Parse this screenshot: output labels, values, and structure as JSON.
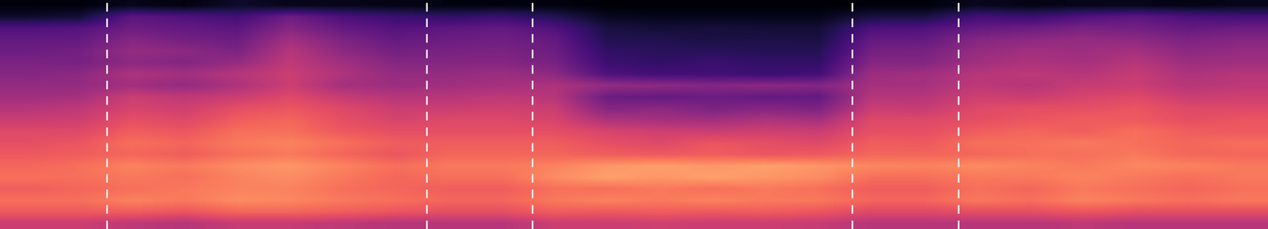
{
  "chart_data": {
    "type": "heatmap",
    "xlim": [
      0,
      24
    ],
    "ylim": [
      0,
      20
    ],
    "clim": [
      0,
      1
    ],
    "tick_labels": false,
    "boundaries": [
      2.02,
      8.07,
      10.07,
      16.13,
      18.14
    ],
    "cells": [
      [
        0.02,
        0.02,
        0.05,
        0.03,
        0.08,
        0.05,
        0.05,
        0.04,
        0.03,
        0.03,
        0.03,
        0.01,
        0.01,
        0.01,
        0.01,
        0.01,
        0.02,
        0.02,
        0.06,
        0.04,
        0.05,
        0.05,
        0.04,
        0.05
      ],
      [
        0.08,
        0.1,
        0.28,
        0.25,
        0.22,
        0.32,
        0.24,
        0.2,
        0.18,
        0.2,
        0.15,
        0.06,
        0.05,
        0.05,
        0.05,
        0.05,
        0.12,
        0.12,
        0.22,
        0.2,
        0.25,
        0.28,
        0.24,
        0.22
      ],
      [
        0.25,
        0.26,
        0.32,
        0.3,
        0.28,
        0.38,
        0.3,
        0.26,
        0.28,
        0.3,
        0.25,
        0.12,
        0.1,
        0.11,
        0.1,
        0.1,
        0.24,
        0.25,
        0.3,
        0.32,
        0.35,
        0.34,
        0.3,
        0.32
      ],
      [
        0.3,
        0.3,
        0.38,
        0.34,
        0.32,
        0.45,
        0.36,
        0.3,
        0.32,
        0.33,
        0.3,
        0.14,
        0.14,
        0.12,
        0.13,
        0.12,
        0.3,
        0.3,
        0.38,
        0.4,
        0.42,
        0.4,
        0.36,
        0.38
      ],
      [
        0.32,
        0.34,
        0.42,
        0.4,
        0.36,
        0.5,
        0.4,
        0.34,
        0.35,
        0.36,
        0.32,
        0.18,
        0.16,
        0.16,
        0.15,
        0.15,
        0.34,
        0.35,
        0.42,
        0.45,
        0.44,
        0.46,
        0.4,
        0.42
      ],
      [
        0.36,
        0.35,
        0.4,
        0.38,
        0.42,
        0.52,
        0.45,
        0.38,
        0.38,
        0.38,
        0.35,
        0.2,
        0.18,
        0.2,
        0.18,
        0.18,
        0.38,
        0.38,
        0.45,
        0.48,
        0.46,
        0.5,
        0.44,
        0.45
      ],
      [
        0.38,
        0.4,
        0.48,
        0.45,
        0.5,
        0.55,
        0.48,
        0.42,
        0.42,
        0.44,
        0.4,
        0.25,
        0.22,
        0.22,
        0.2,
        0.22,
        0.44,
        0.45,
        0.5,
        0.52,
        0.5,
        0.54,
        0.48,
        0.5
      ],
      [
        0.42,
        0.42,
        0.45,
        0.42,
        0.48,
        0.55,
        0.46,
        0.44,
        0.45,
        0.46,
        0.48,
        0.42,
        0.4,
        0.38,
        0.4,
        0.38,
        0.46,
        0.46,
        0.52,
        0.5,
        0.54,
        0.55,
        0.5,
        0.52
      ],
      [
        0.45,
        0.46,
        0.55,
        0.52,
        0.55,
        0.6,
        0.54,
        0.5,
        0.5,
        0.52,
        0.5,
        0.32,
        0.3,
        0.32,
        0.3,
        0.3,
        0.5,
        0.5,
        0.56,
        0.55,
        0.58,
        0.6,
        0.55,
        0.56
      ],
      [
        0.5,
        0.52,
        0.58,
        0.56,
        0.62,
        0.64,
        0.6,
        0.55,
        0.55,
        0.56,
        0.55,
        0.38,
        0.4,
        0.36,
        0.38,
        0.36,
        0.55,
        0.54,
        0.6,
        0.62,
        0.62,
        0.64,
        0.6,
        0.6
      ],
      [
        0.55,
        0.56,
        0.62,
        0.6,
        0.66,
        0.68,
        0.62,
        0.58,
        0.6,
        0.6,
        0.58,
        0.48,
        0.46,
        0.45,
        0.48,
        0.46,
        0.6,
        0.6,
        0.62,
        0.64,
        0.66,
        0.65,
        0.62,
        0.64
      ],
      [
        0.6,
        0.6,
        0.66,
        0.64,
        0.7,
        0.7,
        0.65,
        0.62,
        0.62,
        0.62,
        0.62,
        0.58,
        0.56,
        0.55,
        0.56,
        0.55,
        0.62,
        0.62,
        0.66,
        0.68,
        0.66,
        0.7,
        0.66,
        0.65
      ],
      [
        0.62,
        0.64,
        0.7,
        0.68,
        0.72,
        0.74,
        0.7,
        0.66,
        0.66,
        0.66,
        0.66,
        0.62,
        0.6,
        0.64,
        0.62,
        0.6,
        0.66,
        0.65,
        0.7,
        0.7,
        0.72,
        0.7,
        0.68,
        0.7
      ],
      [
        0.65,
        0.66,
        0.68,
        0.66,
        0.7,
        0.72,
        0.68,
        0.64,
        0.68,
        0.68,
        0.68,
        0.66,
        0.65,
        0.66,
        0.64,
        0.65,
        0.68,
        0.68,
        0.68,
        0.7,
        0.7,
        0.72,
        0.68,
        0.68
      ],
      [
        0.68,
        0.7,
        0.74,
        0.72,
        0.76,
        0.78,
        0.74,
        0.7,
        0.72,
        0.72,
        0.74,
        0.78,
        0.8,
        0.78,
        0.8,
        0.78,
        0.75,
        0.74,
        0.76,
        0.74,
        0.72,
        0.75,
        0.74,
        0.72
      ],
      [
        0.7,
        0.7,
        0.72,
        0.7,
        0.74,
        0.76,
        0.72,
        0.68,
        0.7,
        0.7,
        0.76,
        0.8,
        0.78,
        0.8,
        0.78,
        0.76,
        0.7,
        0.7,
        0.72,
        0.72,
        0.74,
        0.72,
        0.7,
        0.72
      ],
      [
        0.66,
        0.68,
        0.7,
        0.72,
        0.74,
        0.74,
        0.7,
        0.68,
        0.66,
        0.66,
        0.7,
        0.7,
        0.72,
        0.7,
        0.72,
        0.7,
        0.66,
        0.66,
        0.7,
        0.68,
        0.72,
        0.7,
        0.68,
        0.7
      ],
      [
        0.7,
        0.7,
        0.74,
        0.72,
        0.76,
        0.75,
        0.72,
        0.7,
        0.68,
        0.68,
        0.72,
        0.74,
        0.72,
        0.74,
        0.72,
        0.72,
        0.68,
        0.68,
        0.72,
        0.7,
        0.74,
        0.72,
        0.7,
        0.72
      ],
      [
        0.65,
        0.65,
        0.66,
        0.64,
        0.68,
        0.68,
        0.66,
        0.64,
        0.62,
        0.62,
        0.66,
        0.65,
        0.66,
        0.65,
        0.66,
        0.64,
        0.6,
        0.6,
        0.62,
        0.62,
        0.64,
        0.62,
        0.62,
        0.62
      ],
      [
        0.55,
        0.55,
        0.52,
        0.5,
        0.54,
        0.54,
        0.52,
        0.5,
        0.5,
        0.5,
        0.55,
        0.55,
        0.56,
        0.55,
        0.55,
        0.54,
        0.5,
        0.5,
        0.5,
        0.5,
        0.52,
        0.5,
        0.5,
        0.5
      ]
    ]
  }
}
